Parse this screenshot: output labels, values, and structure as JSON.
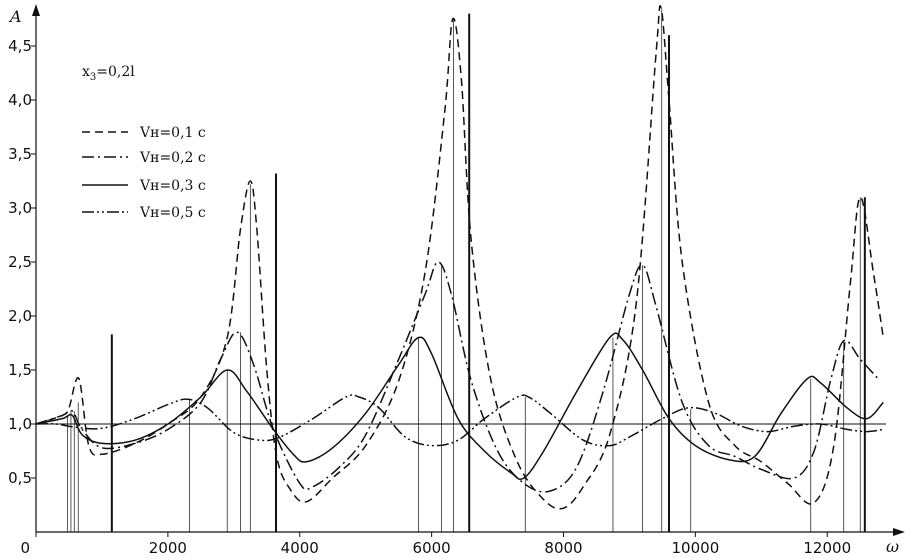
{
  "chart_data": {
    "type": "line",
    "xlabel": "ω",
    "ylabel": "A",
    "xlim": [
      0,
      12800
    ],
    "ylim": [
      0,
      4.8
    ],
    "x_ticks": [
      "0",
      "2000",
      "4000",
      "6000",
      "8000",
      "10000",
      "12000"
    ],
    "x_tick_values": [
      0,
      2000,
      4000,
      6000,
      8000,
      10000,
      12000
    ],
    "y_ticks": [
      "0,5",
      "1,0",
      "1,5",
      "2,0",
      "2,5",
      "3,0",
      "3,5",
      "4,0",
      "4,5"
    ],
    "y_tick_values": [
      0.5,
      1.0,
      1.5,
      2.0,
      2.5,
      3.0,
      3.5,
      4.0,
      4.5
    ],
    "reference_line_y": 1.0,
    "annotation": {
      "base": "x",
      "sub": "3",
      "rest": "=0,2l"
    },
    "legend_position": "top-left",
    "series": [
      {
        "name": "Vн=0,1 c",
        "dash": "8,5",
        "color": "#111111",
        "points": [
          [
            0,
            1.0
          ],
          [
            400,
            1.08
          ],
          [
            500,
            1.15
          ],
          [
            650,
            1.42
          ],
          [
            800,
            0.8
          ],
          [
            1000,
            0.72
          ],
          [
            1500,
            0.82
          ],
          [
            2000,
            1.0
          ],
          [
            2500,
            1.25
          ],
          [
            2900,
            1.8
          ],
          [
            3100,
            2.8
          ],
          [
            3250,
            3.25
          ],
          [
            3350,
            2.8
          ],
          [
            3500,
            1.5
          ],
          [
            3650,
            0.7
          ],
          [
            3850,
            0.4
          ],
          [
            4100,
            0.28
          ],
          [
            4500,
            0.5
          ],
          [
            5000,
            0.8
          ],
          [
            5500,
            1.4
          ],
          [
            5900,
            2.4
          ],
          [
            6200,
            3.9
          ],
          [
            6320,
            4.75
          ],
          [
            6450,
            4.2
          ],
          [
            6600,
            2.7
          ],
          [
            6900,
            1.4
          ],
          [
            7300,
            0.65
          ],
          [
            7700,
            0.3
          ],
          [
            8000,
            0.22
          ],
          [
            8300,
            0.42
          ],
          [
            8700,
            0.9
          ],
          [
            9100,
            2.1
          ],
          [
            9400,
            4.4
          ],
          [
            9480,
            4.85
          ],
          [
            9600,
            4.0
          ],
          [
            9800,
            2.5
          ],
          [
            10200,
            1.2
          ],
          [
            10600,
            0.8
          ],
          [
            11000,
            0.65
          ],
          [
            11400,
            0.45
          ],
          [
            11800,
            0.27
          ],
          [
            12100,
            0.8
          ],
          [
            12350,
            2.3
          ],
          [
            12500,
            3.1
          ],
          [
            12700,
            2.4
          ],
          [
            12850,
            1.8
          ]
        ]
      },
      {
        "name": "Vн=0,2 c",
        "dash": "12,4,2,4",
        "color": "#111111",
        "points": [
          [
            0,
            1.0
          ],
          [
            400,
            1.08
          ],
          [
            550,
            1.12
          ],
          [
            700,
            0.95
          ],
          [
            1000,
            0.78
          ],
          [
            1500,
            0.82
          ],
          [
            2000,
            0.95
          ],
          [
            2500,
            1.2
          ],
          [
            2800,
            1.6
          ],
          [
            3050,
            1.85
          ],
          [
            3300,
            1.55
          ],
          [
            3600,
            0.95
          ],
          [
            4000,
            0.45
          ],
          [
            4200,
            0.42
          ],
          [
            4600,
            0.6
          ],
          [
            5000,
            0.9
          ],
          [
            5500,
            1.6
          ],
          [
            5900,
            2.2
          ],
          [
            6100,
            2.5
          ],
          [
            6300,
            2.2
          ],
          [
            6600,
            1.4
          ],
          [
            7000,
            0.75
          ],
          [
            7400,
            0.45
          ],
          [
            7800,
            0.38
          ],
          [
            8200,
            0.6
          ],
          [
            8600,
            1.3
          ],
          [
            9000,
            2.2
          ],
          [
            9200,
            2.47
          ],
          [
            9400,
            2.1
          ],
          [
            9800,
            1.2
          ],
          [
            10200,
            0.8
          ],
          [
            10600,
            0.7
          ],
          [
            11000,
            0.58
          ],
          [
            11500,
            0.5
          ],
          [
            11800,
            0.75
          ],
          [
            12050,
            1.4
          ],
          [
            12250,
            1.77
          ],
          [
            12500,
            1.6
          ],
          [
            12800,
            1.4
          ]
        ]
      },
      {
        "name": "Vн=0,3 c",
        "dash": "",
        "color": "#111111",
        "points": [
          [
            0,
            1.0
          ],
          [
            400,
            1.05
          ],
          [
            550,
            1.08
          ],
          [
            700,
            0.9
          ],
          [
            1000,
            0.82
          ],
          [
            1500,
            0.85
          ],
          [
            2000,
            1.0
          ],
          [
            2500,
            1.25
          ],
          [
            2900,
            1.5
          ],
          [
            3200,
            1.3
          ],
          [
            3600,
            0.95
          ],
          [
            3900,
            0.72
          ],
          [
            4100,
            0.65
          ],
          [
            4500,
            0.78
          ],
          [
            5000,
            1.1
          ],
          [
            5500,
            1.55
          ],
          [
            5800,
            1.8
          ],
          [
            6000,
            1.65
          ],
          [
            6400,
            1.05
          ],
          [
            6800,
            0.75
          ],
          [
            7200,
            0.55
          ],
          [
            7400,
            0.5
          ],
          [
            7700,
            0.75
          ],
          [
            8200,
            1.3
          ],
          [
            8700,
            1.8
          ],
          [
            8900,
            1.78
          ],
          [
            9200,
            1.5
          ],
          [
            9600,
            1.05
          ],
          [
            10000,
            0.8
          ],
          [
            10500,
            0.67
          ],
          [
            10900,
            0.7
          ],
          [
            11300,
            1.1
          ],
          [
            11700,
            1.42
          ],
          [
            11900,
            1.38
          ],
          [
            12300,
            1.15
          ],
          [
            12600,
            1.05
          ],
          [
            12850,
            1.2
          ]
        ]
      },
      {
        "name": "Vн=0,5 c",
        "dash": "12,3,2,3,2,3",
        "color": "#111111",
        "points": [
          [
            0,
            1.0
          ],
          [
            300,
            1.0
          ],
          [
            600,
            0.97
          ],
          [
            1000,
            0.96
          ],
          [
            1500,
            1.05
          ],
          [
            2000,
            1.18
          ],
          [
            2300,
            1.23
          ],
          [
            2600,
            1.15
          ],
          [
            3000,
            0.92
          ],
          [
            3400,
            0.85
          ],
          [
            3700,
            0.88
          ],
          [
            4200,
            1.05
          ],
          [
            4700,
            1.25
          ],
          [
            4900,
            1.25
          ],
          [
            5200,
            1.15
          ],
          [
            5600,
            0.88
          ],
          [
            6000,
            0.8
          ],
          [
            6400,
            0.85
          ],
          [
            6800,
            1.05
          ],
          [
            7300,
            1.25
          ],
          [
            7500,
            1.24
          ],
          [
            7800,
            1.1
          ],
          [
            8300,
            0.85
          ],
          [
            8700,
            0.8
          ],
          [
            9000,
            0.88
          ],
          [
            9500,
            1.05
          ],
          [
            9900,
            1.15
          ],
          [
            10300,
            1.1
          ],
          [
            10700,
            0.98
          ],
          [
            11100,
            0.93
          ],
          [
            11500,
            0.98
          ],
          [
            11900,
            1.0
          ],
          [
            12300,
            0.95
          ],
          [
            12600,
            0.93
          ],
          [
            12850,
            0.95
          ]
        ]
      }
    ],
    "markers": {
      "thick": [
        [
          1150,
          1.83
        ],
        [
          3640,
          3.32
        ],
        [
          6570,
          4.8
        ],
        [
          9600,
          4.6
        ],
        [
          12570,
          3.1
        ]
      ],
      "thin": [
        [
          480,
          1.08
        ],
        [
          530,
          1.12
        ],
        [
          580,
          1.12
        ],
        [
          640,
          1.2
        ],
        [
          2330,
          1.23
        ],
        [
          2900,
          1.5
        ],
        [
          3100,
          1.85
        ],
        [
          3250,
          3.22
        ],
        [
          5800,
          1.8
        ],
        [
          6150,
          2.48
        ],
        [
          6330,
          4.75
        ],
        [
          7420,
          1.25
        ],
        [
          8750,
          1.8
        ],
        [
          9200,
          2.47
        ],
        [
          9490,
          4.85
        ],
        [
          9930,
          1.14
        ],
        [
          11750,
          1.42
        ],
        [
          12250,
          1.77
        ],
        [
          12500,
          3.1
        ]
      ]
    }
  }
}
